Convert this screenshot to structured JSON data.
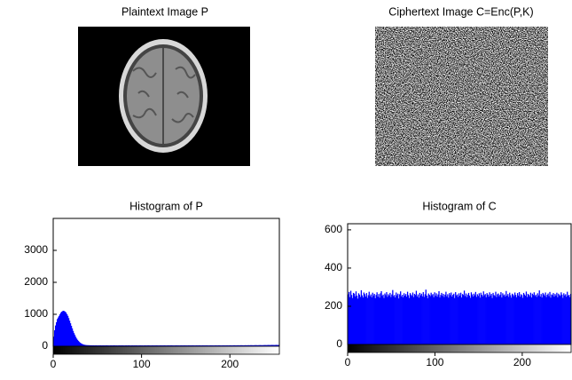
{
  "chart_data": [
    {
      "type": "image",
      "title": "Plaintext Image P"
    },
    {
      "type": "image",
      "title": "Ciphertext Image C=Enc(P,K)"
    },
    {
      "type": "histogram",
      "title": "Histogram of P",
      "color": "#0000ff",
      "bins": [
        0,
        1,
        2,
        3,
        4,
        5,
        6,
        7,
        8,
        9,
        10,
        11,
        12,
        13,
        14,
        15,
        16,
        17,
        18,
        19,
        20,
        21,
        22,
        23,
        24,
        25,
        26,
        27,
        28,
        29,
        30,
        31,
        32,
        33,
        34,
        35,
        36,
        37,
        38,
        39,
        40,
        41,
        42,
        43,
        44,
        45,
        46,
        47,
        48,
        49,
        50,
        51,
        52,
        53,
        54,
        55,
        56,
        57,
        58,
        59,
        60,
        61,
        62,
        63,
        64,
        65,
        66,
        67,
        68,
        69,
        70,
        71,
        72,
        73,
        74,
        75,
        76,
        77,
        78,
        79,
        80,
        81,
        82,
        83,
        84,
        85,
        86,
        87,
        88,
        89,
        90,
        91,
        92,
        93,
        94,
        95,
        96,
        97,
        98,
        99,
        100,
        101,
        102,
        103,
        104,
        105,
        106,
        107,
        108,
        109,
        110,
        111,
        112,
        113,
        114,
        115,
        116,
        117,
        118,
        119,
        120,
        121,
        122,
        123,
        124,
        125,
        126,
        127,
        128,
        129,
        130,
        131,
        132,
        133,
        134,
        135,
        136,
        137,
        138,
        139,
        140,
        141,
        142,
        143,
        144,
        145,
        146,
        147,
        148,
        149,
        150,
        151,
        152,
        153,
        154,
        155,
        156,
        157,
        158,
        159,
        160,
        161,
        162,
        163,
        164,
        165,
        166,
        167,
        168,
        169,
        170,
        171,
        172,
        173,
        174,
        175,
        176,
        177,
        178,
        179,
        180,
        181,
        182,
        183,
        184,
        185,
        186,
        187,
        188,
        189,
        190,
        191,
        192,
        193,
        194,
        195,
        196,
        197,
        198,
        199,
        200,
        201,
        202,
        203,
        204,
        205,
        206,
        207,
        208,
        209,
        210,
        211,
        212,
        213,
        214,
        215,
        216,
        217,
        218,
        219,
        220,
        221,
        222,
        223,
        224,
        225,
        226,
        227,
        228,
        229,
        230,
        231,
        232,
        233,
        234,
        235,
        236,
        237,
        238,
        239,
        240,
        241,
        242,
        243,
        244,
        245,
        246,
        247,
        248,
        249,
        250,
        251,
        252,
        253,
        254,
        255,
        256
      ],
      "values": [
        300,
        500,
        650,
        750,
        850,
        900,
        950,
        1000,
        1050,
        1080,
        1100,
        1110,
        1100,
        1080,
        1050,
        1000,
        950,
        880,
        800,
        720,
        640,
        560,
        480,
        410,
        350,
        290,
        240,
        200,
        165,
        135,
        110,
        90,
        75,
        62,
        52,
        45,
        40,
        36,
        34,
        33,
        32,
        31,
        30,
        30,
        29,
        30,
        28,
        29,
        30,
        28,
        27,
        29,
        28,
        30,
        27,
        28,
        29,
        28,
        27,
        29,
        30,
        28,
        27,
        26,
        28,
        29,
        27,
        28,
        30,
        29,
        27,
        28,
        26,
        27,
        29,
        28,
        27,
        29,
        28,
        27,
        26,
        28,
        29,
        27,
        28,
        30,
        27,
        26,
        28,
        29,
        27,
        28,
        27,
        29,
        28,
        26,
        27,
        28,
        29,
        27,
        28,
        26,
        27,
        29,
        28,
        27,
        28,
        30,
        28,
        27,
        26,
        28,
        29,
        27,
        28,
        27,
        29,
        28,
        27,
        26,
        28,
        29,
        27,
        28,
        27,
        29,
        28,
        26,
        27,
        28,
        29,
        27,
        28,
        30,
        28,
        27,
        26,
        27,
        28,
        29,
        27,
        28,
        26,
        27,
        29,
        28,
        27,
        28,
        29,
        27,
        28,
        26,
        28,
        29,
        27,
        28,
        27,
        29,
        28,
        27,
        26,
        28,
        29,
        27,
        28,
        30,
        27,
        26,
        28,
        29,
        27,
        28,
        27,
        29,
        28,
        26,
        27,
        28,
        29,
        27,
        28,
        26,
        27,
        29,
        28,
        27,
        28,
        30,
        28,
        27,
        26,
        28,
        29,
        27,
        28,
        27,
        29,
        28,
        27,
        29,
        30,
        28,
        27,
        29,
        31,
        30,
        28,
        29,
        30,
        31,
        29,
        30,
        32,
        31,
        30,
        29,
        31,
        32,
        31,
        30,
        33,
        32,
        31,
        34,
        33,
        32,
        31,
        33,
        34,
        35,
        33,
        32,
        34,
        35,
        36,
        34,
        33,
        35,
        36,
        38,
        37,
        36,
        38,
        40,
        39,
        38,
        40,
        42,
        41,
        40,
        39,
        41,
        43,
        42,
        40,
        38
      ],
      "xlim": [
        0,
        256
      ],
      "xticks": [
        0,
        100,
        200
      ],
      "ylim": [
        0,
        4000
      ],
      "yticks": [
        0,
        1000,
        2000,
        3000
      ]
    },
    {
      "type": "histogram",
      "title": "Histogram of C",
      "color": "#0000ff",
      "bins": [
        0,
        1,
        2,
        3,
        4,
        5,
        6,
        7,
        8,
        9,
        10,
        11,
        12,
        13,
        14,
        15,
        16,
        17,
        18,
        19,
        20,
        21,
        22,
        23,
        24,
        25,
        26,
        27,
        28,
        29,
        30,
        31,
        32,
        33,
        34,
        35,
        36,
        37,
        38,
        39,
        40,
        41,
        42,
        43,
        44,
        45,
        46,
        47,
        48,
        49,
        50,
        51,
        52,
        53,
        54,
        55,
        56,
        57,
        58,
        59,
        60,
        61,
        62,
        63,
        64,
        65,
        66,
        67,
        68,
        69,
        70,
        71,
        72,
        73,
        74,
        75,
        76,
        77,
        78,
        79,
        80,
        81,
        82,
        83,
        84,
        85,
        86,
        87,
        88,
        89,
        90,
        91,
        92,
        93,
        94,
        95,
        96,
        97,
        98,
        99,
        100,
        101,
        102,
        103,
        104,
        105,
        106,
        107,
        108,
        109,
        110,
        111,
        112,
        113,
        114,
        115,
        116,
        117,
        118,
        119,
        120,
        121,
        122,
        123,
        124,
        125,
        126,
        127,
        128,
        129,
        130,
        131,
        132,
        133,
        134,
        135,
        136,
        137,
        138,
        139,
        140,
        141,
        142,
        143,
        144,
        145,
        146,
        147,
        148,
        149,
        150,
        151,
        152,
        153,
        154,
        155,
        156,
        157,
        158,
        159,
        160,
        161,
        162,
        163,
        164,
        165,
        166,
        167,
        168,
        169,
        170,
        171,
        172,
        173,
        174,
        175,
        176,
        177,
        178,
        179,
        180,
        181,
        182,
        183,
        184,
        185,
        186,
        187,
        188,
        189,
        190,
        191,
        192,
        193,
        194,
        195,
        196,
        197,
        198,
        199,
        200,
        201,
        202,
        203,
        204,
        205,
        206,
        207,
        208,
        209,
        210,
        211,
        212,
        213,
        214,
        215,
        216,
        217,
        218,
        219,
        220,
        221,
        222,
        223,
        224,
        225,
        226,
        227,
        228,
        229,
        230,
        231,
        232,
        233,
        234,
        235,
        236,
        237,
        238,
        239,
        240,
        241,
        242,
        243,
        244,
        245,
        246,
        247,
        248,
        249,
        250,
        251,
        252,
        253,
        254,
        255,
        256
      ],
      "values": [
        262,
        275,
        248,
        281,
        259,
        243,
        270,
        266,
        252,
        278,
        255,
        240,
        268,
        261,
        249,
        284,
        257,
        246,
        272,
        263,
        251,
        269,
        244,
        258,
        276,
        253,
        262,
        247,
        271,
        256,
        265,
        242,
        259,
        273,
        250,
        264,
        245,
        268,
        279,
        254,
        261,
        243,
        267,
        258,
        274,
        249,
        263,
        256,
        270,
        248,
        262,
        285,
        253,
        259,
        246,
        272,
        257,
        266,
        241,
        263,
        278,
        252,
        260,
        247,
        268,
        255,
        264,
        250,
        276,
        258,
        243,
        269,
        261,
        254,
        272,
        248,
        265,
        259,
        281,
        251,
        262,
        245,
        270,
        257,
        266,
        252,
        274,
        249,
        263,
        287,
        256,
        242,
        267,
        260,
        253,
        271,
        258,
        264,
        247,
        273,
        255,
        268,
        250,
        262,
        279,
        246,
        259,
        270,
        254,
        265,
        248,
        261,
        276,
        252,
        263,
        245,
        269,
        258,
        272,
        251,
        260,
        266,
        243,
        274,
        257,
        262,
        249,
        268,
        255,
        271,
        246,
        264,
        259,
        282,
        253,
        267,
        248,
        261,
        270,
        256,
        244,
        273,
        262,
        251,
        266,
        257,
        275,
        249,
        263,
        254,
        268,
        245,
        271,
        260,
        252,
        278,
        258,
        264,
        247,
        269,
        261,
        250,
        273,
        256,
        265,
        243,
        270,
        259,
        254,
        276,
        248,
        263,
        267,
        252,
        260,
        274,
        246,
        268,
        257,
        262,
        251,
        280,
        255,
        264,
        249,
        271,
        258,
        245,
        266,
        261,
        253,
        272,
        259,
        247,
        269,
        256,
        274,
        250,
        263,
        258,
        244,
        270,
        262,
        255,
        277,
        248,
        265,
        260,
        252,
        271,
        246,
        266,
        259,
        273,
        254,
        261,
        249,
        268,
        257,
        283,
        251,
        264,
        246,
        270,
        263,
        255,
        272,
        248,
        260,
        267,
        253,
        275,
        245,
        262,
        258,
        269,
        250,
        264,
        256,
        271,
        247,
        266,
        259,
        254,
        273,
        261,
        244,
        268,
        257,
        263,
        250,
        276,
        255,
        260,
        248,
        265
      ],
      "xlim": [
        0,
        256
      ],
      "xticks": [
        0,
        100,
        200
      ],
      "ylim": [
        0,
        632
      ],
      "yticks": [
        0,
        200,
        400,
        600
      ]
    }
  ]
}
